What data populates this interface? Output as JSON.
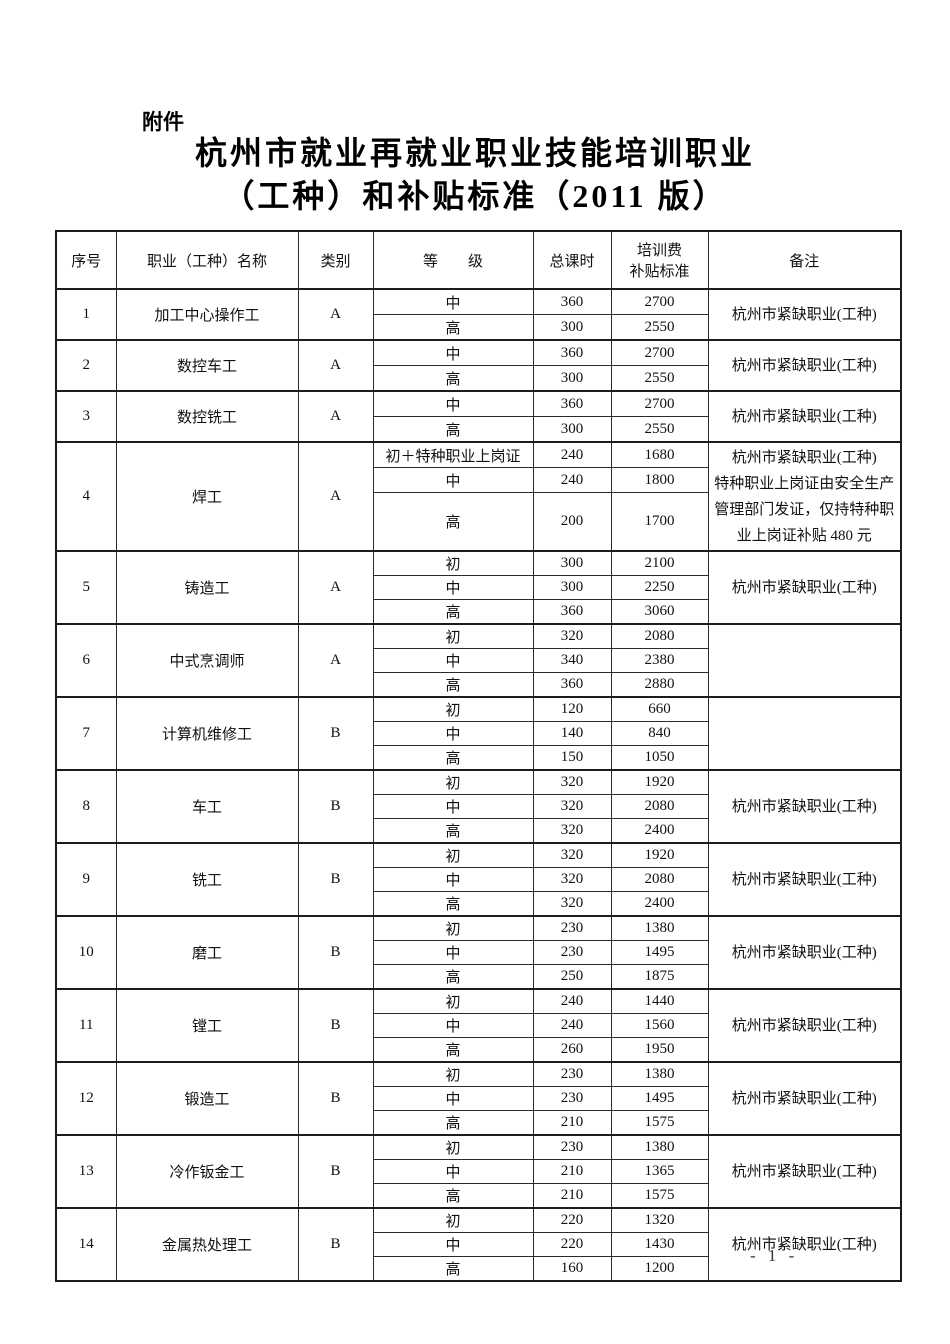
{
  "page": {
    "attachment_label": "附件",
    "title_line1": "杭州市就业再就业职业技能培训职业",
    "title_line2": "（工种）和补贴标准（2011 版）",
    "footer_page": "- 1 -"
  },
  "table": {
    "headers": {
      "index": "序号",
      "name": "职业（工种）名称",
      "category": "类别",
      "level": "等　　级",
      "hours": "总课时",
      "subsidy": [
        "培训费",
        "补贴标准"
      ],
      "remark": "备注"
    },
    "rows": [
      {
        "index": "1",
        "name": "加工中心操作工",
        "category": "A",
        "levels": [
          {
            "level": "中",
            "hours": "360",
            "subsidy": "2700"
          },
          {
            "level": "高",
            "hours": "300",
            "subsidy": "2550"
          }
        ],
        "remark": "杭州市紧缺职业(工种)"
      },
      {
        "index": "2",
        "name": "数控车工",
        "category": "A",
        "levels": [
          {
            "level": "中",
            "hours": "360",
            "subsidy": "2700"
          },
          {
            "level": "高",
            "hours": "300",
            "subsidy": "2550"
          }
        ],
        "remark": "杭州市紧缺职业(工种)"
      },
      {
        "index": "3",
        "name": "数控铣工",
        "category": "A",
        "levels": [
          {
            "level": "中",
            "hours": "360",
            "subsidy": "2700"
          },
          {
            "level": "高",
            "hours": "300",
            "subsidy": "2550"
          }
        ],
        "remark": "杭州市紧缺职业(工种)"
      },
      {
        "index": "4",
        "name": "焊工",
        "category": "A",
        "levels": [
          {
            "level": "初＋特种职业上岗证",
            "hours": "240",
            "subsidy": "1680"
          },
          {
            "level": "中",
            "hours": "240",
            "subsidy": "1800"
          },
          {
            "level": "高",
            "hours": "200",
            "subsidy": "1700"
          }
        ],
        "remark": [
          "杭州市紧缺职业(工种)",
          "特种职业上岗证由安全生产",
          "管理部门发证，仅持特种职",
          "业上岗证补贴 480 元"
        ]
      },
      {
        "index": "5",
        "name": "铸造工",
        "category": "A",
        "levels": [
          {
            "level": "初",
            "hours": "300",
            "subsidy": "2100"
          },
          {
            "level": "中",
            "hours": "300",
            "subsidy": "2250"
          },
          {
            "level": "高",
            "hours": "360",
            "subsidy": "3060"
          }
        ],
        "remark": "杭州市紧缺职业(工种)"
      },
      {
        "index": "6",
        "name": "中式烹调师",
        "category": "A",
        "levels": [
          {
            "level": "初",
            "hours": "320",
            "subsidy": "2080"
          },
          {
            "level": "中",
            "hours": "340",
            "subsidy": "2380"
          },
          {
            "level": "高",
            "hours": "360",
            "subsidy": "2880"
          }
        ],
        "remark": ""
      },
      {
        "index": "7",
        "name": "计算机维修工",
        "category": "B",
        "levels": [
          {
            "level": "初",
            "hours": "120",
            "subsidy": "660"
          },
          {
            "level": "中",
            "hours": "140",
            "subsidy": "840"
          },
          {
            "level": "高",
            "hours": "150",
            "subsidy": "1050"
          }
        ],
        "remark": ""
      },
      {
        "index": "8",
        "name": "车工",
        "category": "B",
        "levels": [
          {
            "level": "初",
            "hours": "320",
            "subsidy": "1920"
          },
          {
            "level": "中",
            "hours": "320",
            "subsidy": "2080"
          },
          {
            "level": "高",
            "hours": "320",
            "subsidy": "2400"
          }
        ],
        "remark": "杭州市紧缺职业(工种)"
      },
      {
        "index": "9",
        "name": "铣工",
        "category": "B",
        "levels": [
          {
            "level": "初",
            "hours": "320",
            "subsidy": "1920"
          },
          {
            "level": "中",
            "hours": "320",
            "subsidy": "2080"
          },
          {
            "level": "高",
            "hours": "320",
            "subsidy": "2400"
          }
        ],
        "remark": "杭州市紧缺职业(工种)"
      },
      {
        "index": "10",
        "name": "磨工",
        "category": "B",
        "levels": [
          {
            "level": "初",
            "hours": "230",
            "subsidy": "1380"
          },
          {
            "level": "中",
            "hours": "230",
            "subsidy": "1495"
          },
          {
            "level": "高",
            "hours": "250",
            "subsidy": "1875"
          }
        ],
        "remark": "杭州市紧缺职业(工种)"
      },
      {
        "index": "11",
        "name": "镗工",
        "category": "B",
        "levels": [
          {
            "level": "初",
            "hours": "240",
            "subsidy": "1440"
          },
          {
            "level": "中",
            "hours": "240",
            "subsidy": "1560"
          },
          {
            "level": "高",
            "hours": "260",
            "subsidy": "1950"
          }
        ],
        "remark": "杭州市紧缺职业(工种)"
      },
      {
        "index": "12",
        "name": "锻造工",
        "category": "B",
        "levels": [
          {
            "level": "初",
            "hours": "230",
            "subsidy": "1380"
          },
          {
            "level": "中",
            "hours": "230",
            "subsidy": "1495"
          },
          {
            "level": "高",
            "hours": "210",
            "subsidy": "1575"
          }
        ],
        "remark": "杭州市紧缺职业(工种)"
      },
      {
        "index": "13",
        "name": "冷作钣金工",
        "category": "B",
        "levels": [
          {
            "level": "初",
            "hours": "230",
            "subsidy": "1380"
          },
          {
            "level": "中",
            "hours": "210",
            "subsidy": "1365"
          },
          {
            "level": "高",
            "hours": "210",
            "subsidy": "1575"
          }
        ],
        "remark": "杭州市紧缺职业(工种)"
      },
      {
        "index": "14",
        "name": "金属热处理工",
        "category": "B",
        "levels": [
          {
            "level": "初",
            "hours": "220",
            "subsidy": "1320"
          },
          {
            "level": "中",
            "hours": "220",
            "subsidy": "1430"
          },
          {
            "level": "高",
            "hours": "160",
            "subsidy": "1200"
          }
        ],
        "remark": "杭州市紧缺职业(工种)"
      }
    ]
  }
}
